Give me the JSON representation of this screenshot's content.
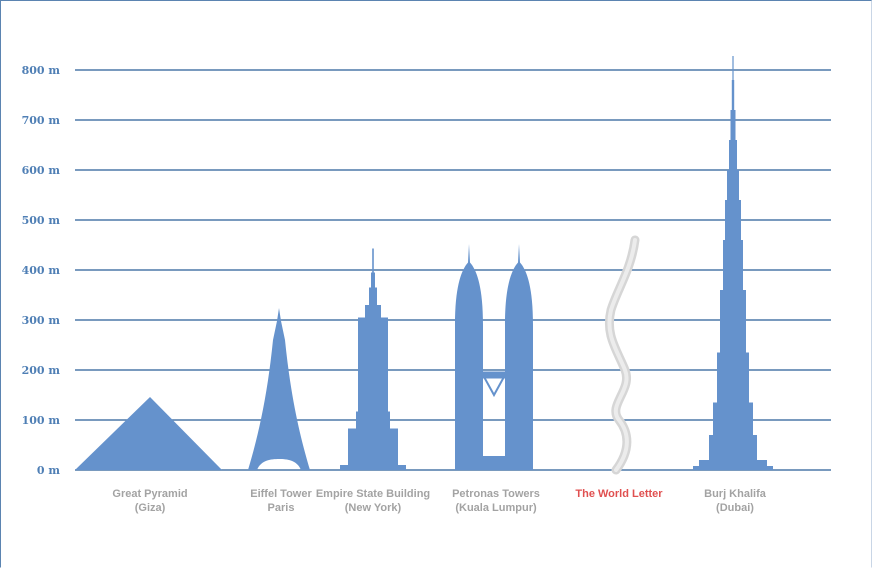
{
  "chart_data": {
    "type": "bar",
    "title": "",
    "xlabel": "",
    "ylabel": "",
    "ylim": [
      0,
      800
    ],
    "y_unit": "m",
    "y_ticks": [
      "0 m",
      "100 m",
      "200 m",
      "300 m",
      "400 m",
      "500 m",
      "600 m",
      "700 m",
      "800 m"
    ],
    "grid": true,
    "categories": [
      {
        "line1": "Great Pyramid",
        "line2": "(Giza)"
      },
      {
        "line1": "Eiffel Tower",
        "line2": "Paris"
      },
      {
        "line1": "Empire State Building",
        "line2": "(New York)"
      },
      {
        "line1": "Petronas Towers",
        "line2": "(Kuala Lumpur)"
      },
      {
        "line1": "The World Letter",
        "line2": ""
      },
      {
        "line1": "Burj Khalifa",
        "line2": "(Dubai)"
      }
    ],
    "values": [
      146,
      324,
      443,
      452,
      460,
      828
    ],
    "colors": {
      "structure": "#6592cc",
      "grid": "#4d79a8",
      "tick_text": "#4f7fb5",
      "label": "#a3a3a3",
      "highlight": "#e05050",
      "letter": "#d6d6d6"
    }
  }
}
